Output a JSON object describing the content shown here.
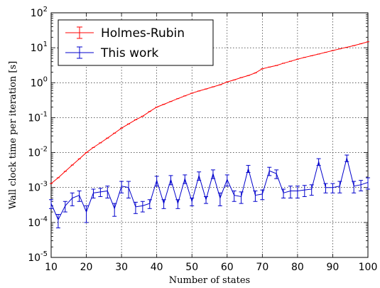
{
  "chart_data": {
    "type": "line",
    "log_y": true,
    "grid": true,
    "legend": "upper left",
    "xlabel": "Number of states",
    "ylabel": "Wall clock time per iteration [s]",
    "x": [
      10,
      12,
      14,
      16,
      18,
      20,
      22,
      24,
      26,
      28,
      30,
      32,
      34,
      36,
      38,
      40,
      42,
      44,
      46,
      48,
      50,
      52,
      54,
      56,
      58,
      60,
      62,
      64,
      66,
      68,
      70,
      72,
      74,
      76,
      78,
      80,
      82,
      84,
      86,
      88,
      90,
      92,
      94,
      96,
      98,
      100
    ],
    "xlim": [
      10,
      100
    ],
    "xticks": [
      10,
      20,
      30,
      40,
      50,
      60,
      70,
      80,
      90,
      100
    ],
    "ylim": [
      1e-05,
      100
    ],
    "yticks": [
      {
        "value": 1e-05,
        "label": "10^-5"
      },
      {
        "value": 0.0001,
        "label": "10^-4"
      },
      {
        "value": 0.001,
        "label": "10^-3"
      },
      {
        "value": 0.01,
        "label": "10^-2"
      },
      {
        "value": 0.1,
        "label": "10^-1"
      },
      {
        "value": 1,
        "label": "10^0"
      },
      {
        "value": 10,
        "label": "10^1"
      },
      {
        "value": 100,
        "label": "10^2"
      }
    ],
    "series": [
      {
        "name": "Holmes-Rubin",
        "color": "#ff0000",
        "values": [
          0.0013,
          0.0019,
          0.0029,
          0.0044,
          0.0066,
          0.01,
          0.014,
          0.019,
          0.026,
          0.036,
          0.05,
          0.066,
          0.087,
          0.11,
          0.15,
          0.2,
          0.24,
          0.29,
          0.35,
          0.42,
          0.5,
          0.58,
          0.66,
          0.76,
          0.87,
          1.05,
          1.2,
          1.4,
          1.6,
          1.9,
          2.5,
          2.8,
          3.1,
          3.6,
          4.1,
          4.7,
          5.3,
          5.9,
          6.6,
          7.4,
          8.3,
          9.3,
          10.3,
          11.5,
          13,
          14.8
        ]
      },
      {
        "name": "This work",
        "color": "#0000cc",
        "values": [
          0.00035,
          0.00012,
          0.0003,
          0.0005,
          0.0006,
          0.0002,
          0.0007,
          0.00075,
          0.0008,
          0.00025,
          0.0011,
          0.001,
          0.00028,
          0.0003,
          0.00035,
          0.0016,
          0.00035,
          0.0017,
          0.00035,
          0.0018,
          0.0004,
          0.0022,
          0.00045,
          0.0025,
          0.0005,
          0.0017,
          0.0006,
          0.00055,
          0.0035,
          0.0006,
          0.00065,
          0.003,
          0.0025,
          0.0007,
          0.0008,
          0.0008,
          0.00085,
          0.0009,
          0.0055,
          0.001,
          0.001,
          0.0011,
          0.007,
          0.0011,
          0.0012,
          0.0014
        ],
        "errors": [
          0.0001,
          5e-05,
          0.0001,
          0.0002,
          0.0002,
          0.0001,
          0.0002,
          0.0002,
          0.0003,
          0.0001,
          0.0004,
          0.0005,
          0.0001,
          0.0001,
          0.0001,
          0.0005,
          0.0001,
          0.0005,
          0.0001,
          0.0005,
          0.0001,
          0.0006,
          0.0001,
          0.0007,
          0.0002,
          0.0006,
          0.0002,
          0.0002,
          0.0008,
          0.0002,
          0.0002,
          0.0008,
          0.0007,
          0.0002,
          0.0003,
          0.0003,
          0.0003,
          0.0003,
          0.0012,
          0.0003,
          0.0003,
          0.0004,
          0.0015,
          0.0004,
          0.0004,
          0.0005
        ]
      }
    ]
  }
}
